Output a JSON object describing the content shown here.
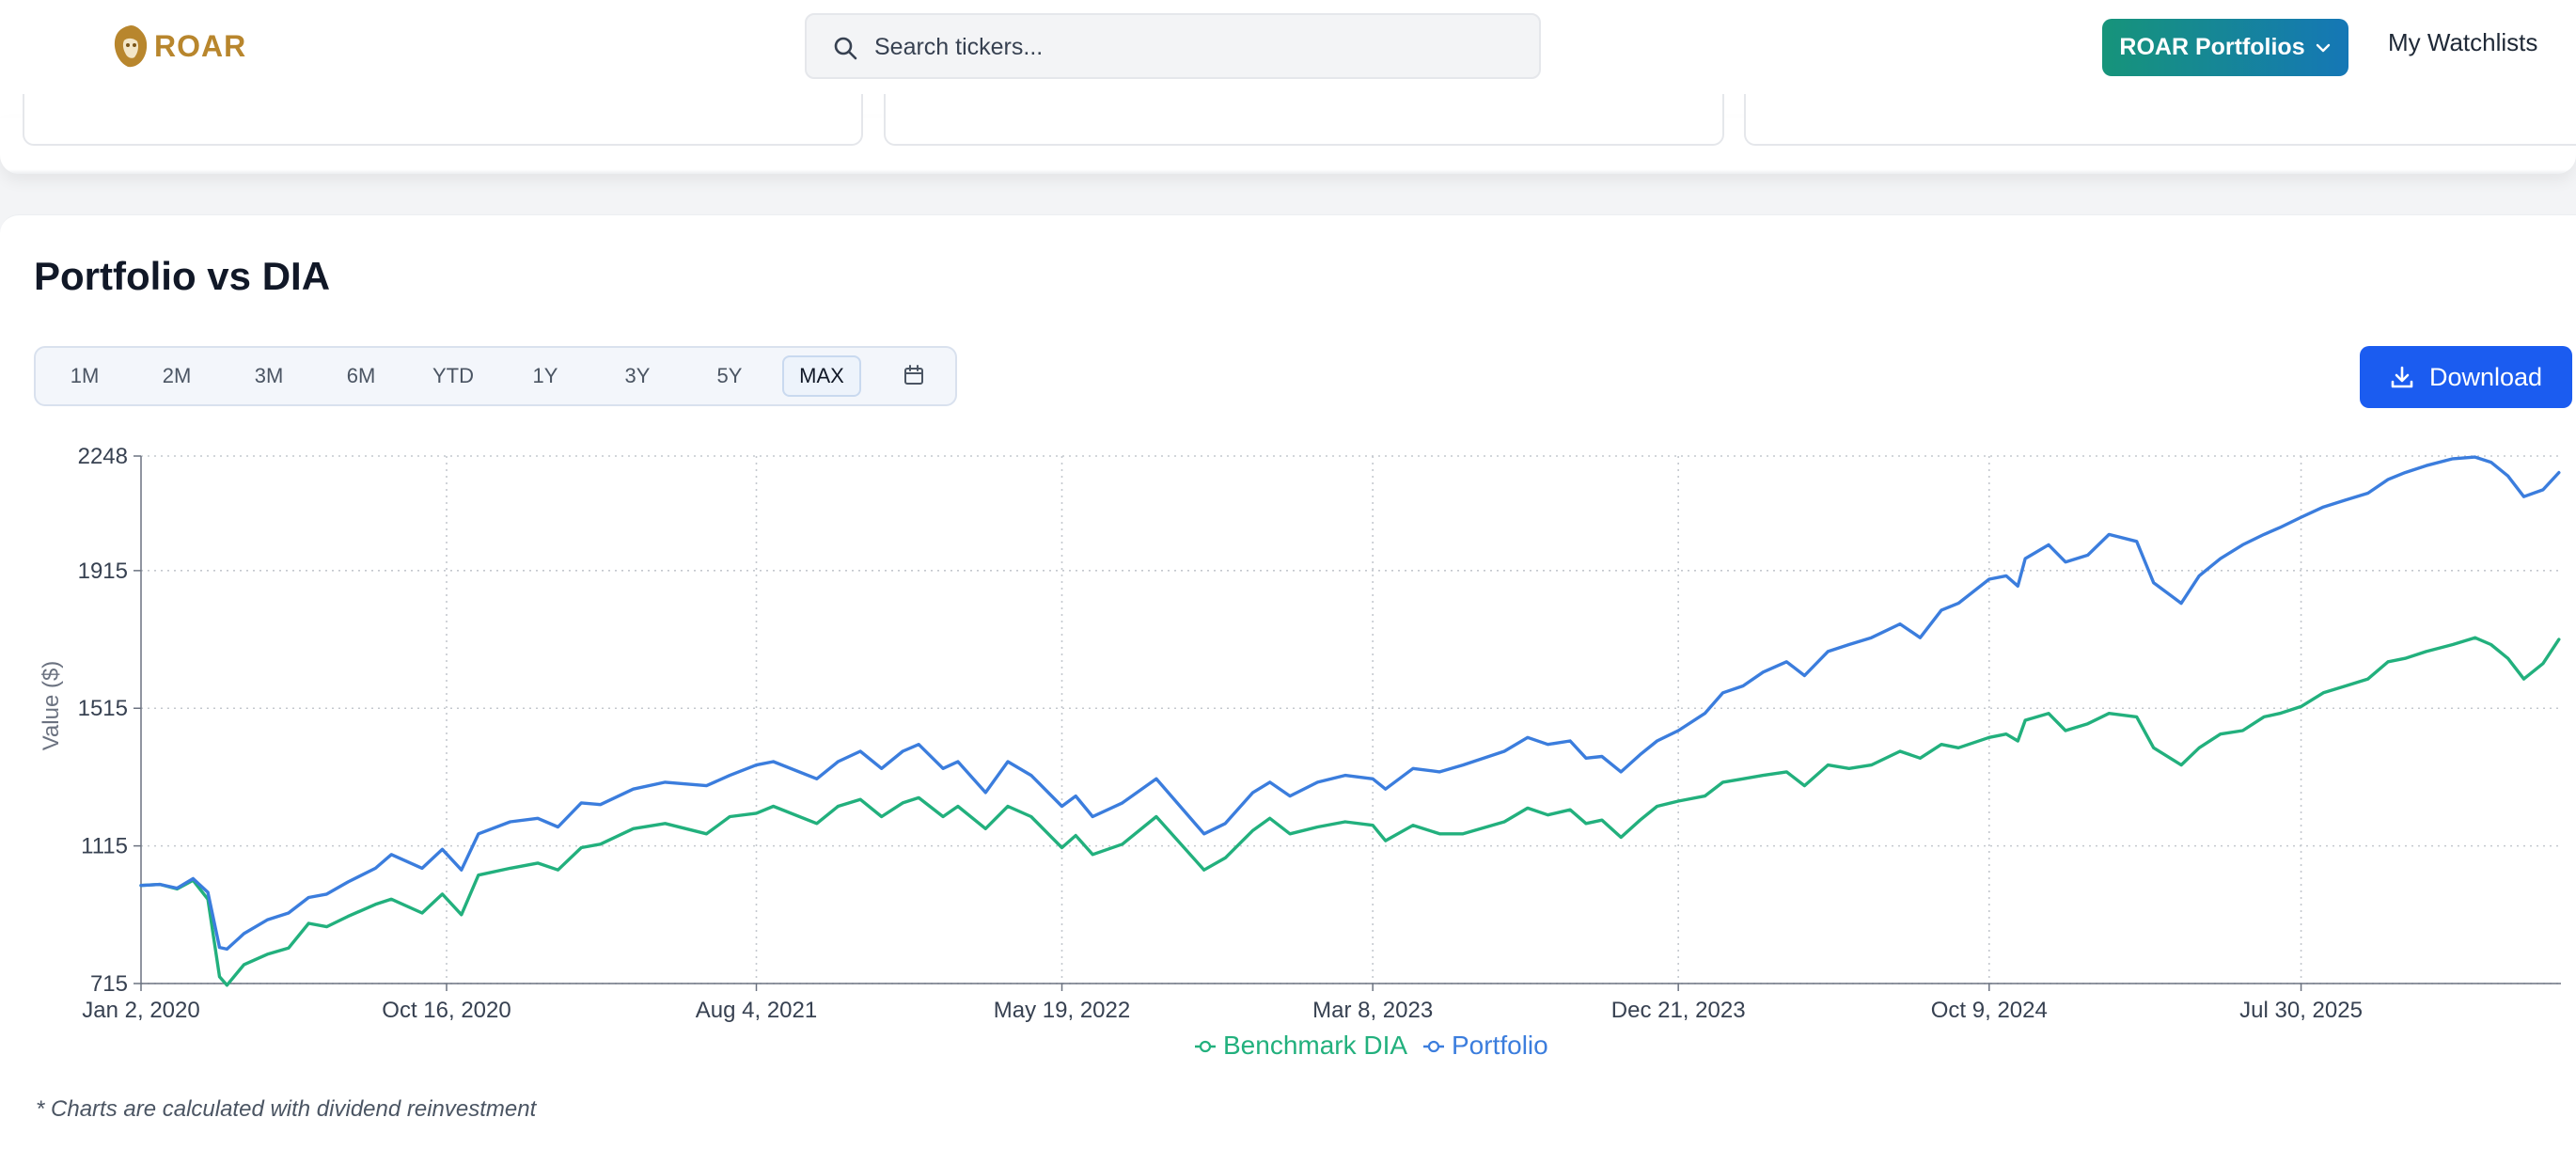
{
  "header": {
    "logo_text": "ROAR",
    "search_placeholder": "Search tickers...",
    "portfolios_button": "ROAR Portfolios",
    "watchlists_link": "My Watchlists"
  },
  "page": {
    "title": "Portfolio vs DIA",
    "ranges": [
      "1M",
      "2M",
      "3M",
      "6M",
      "YTD",
      "1Y",
      "3Y",
      "5Y",
      "MAX"
    ],
    "active_range": "MAX",
    "download_label": "Download",
    "footnote": "* Charts are calculated with dividend reinvestment"
  },
  "colors": {
    "accent_blue": "#1b5cf0",
    "portfolio_line": "#3b7ddd",
    "benchmark_line": "#22b07d",
    "brand_gold": "#b8862d"
  },
  "chart_data": {
    "type": "line",
    "title": "",
    "xlabel": "",
    "ylabel": "Value ($)",
    "ylim": [
      715,
      2248
    ],
    "yticks": [
      715,
      1115,
      1515,
      1915,
      2248
    ],
    "x_ticks": [
      "Jan 2, 2020",
      "Oct 16, 2020",
      "Aug 4, 2021",
      "May 19, 2022",
      "Mar 8, 2023",
      "Dec 21, 2023",
      "Oct 9, 2024",
      "Jul 30, 2025"
    ],
    "x_tick_dates": [
      "2020-01-02",
      "2020-10-16",
      "2021-08-04",
      "2022-05-19",
      "2023-03-08",
      "2023-12-21",
      "2024-10-09",
      "2025-07-30"
    ],
    "grid": true,
    "legend_position": "bottom-center",
    "series": [
      {
        "name": "Benchmark DIA",
        "color": "#22b07d",
        "points": [
          [
            "2020-01-02",
            1000
          ],
          [
            "2020-01-20",
            1003
          ],
          [
            "2020-02-05",
            990
          ],
          [
            "2020-02-20",
            1015
          ],
          [
            "2020-03-05",
            960
          ],
          [
            "2020-03-16",
            735
          ],
          [
            "2020-03-23",
            710
          ],
          [
            "2020-04-08",
            770
          ],
          [
            "2020-04-30",
            800
          ],
          [
            "2020-05-20",
            818
          ],
          [
            "2020-06-08",
            890
          ],
          [
            "2020-06-25",
            880
          ],
          [
            "2020-07-15",
            910
          ],
          [
            "2020-08-10",
            945
          ],
          [
            "2020-08-25",
            960
          ],
          [
            "2020-09-23",
            920
          ],
          [
            "2020-10-12",
            975
          ],
          [
            "2020-10-30",
            915
          ],
          [
            "2020-11-15",
            1030
          ],
          [
            "2020-12-15",
            1050
          ],
          [
            "2021-01-10",
            1065
          ],
          [
            "2021-01-29",
            1045
          ],
          [
            "2021-02-20",
            1110
          ],
          [
            "2021-03-10",
            1120
          ],
          [
            "2021-04-10",
            1165
          ],
          [
            "2021-05-10",
            1180
          ],
          [
            "2021-06-18",
            1150
          ],
          [
            "2021-07-10",
            1200
          ],
          [
            "2021-08-04",
            1210
          ],
          [
            "2021-08-20",
            1230
          ],
          [
            "2021-09-30",
            1180
          ],
          [
            "2021-10-20",
            1230
          ],
          [
            "2021-11-10",
            1250
          ],
          [
            "2021-11-30",
            1200
          ],
          [
            "2021-12-20",
            1240
          ],
          [
            "2022-01-04",
            1255
          ],
          [
            "2022-01-27",
            1200
          ],
          [
            "2022-02-10",
            1230
          ],
          [
            "2022-03-08",
            1165
          ],
          [
            "2022-03-29",
            1230
          ],
          [
            "2022-04-20",
            1200
          ],
          [
            "2022-05-19",
            1110
          ],
          [
            "2022-06-01",
            1145
          ],
          [
            "2022-06-17",
            1090
          ],
          [
            "2022-07-15",
            1120
          ],
          [
            "2022-08-16",
            1200
          ],
          [
            "2022-09-30",
            1045
          ],
          [
            "2022-10-20",
            1080
          ],
          [
            "2022-11-15",
            1160
          ],
          [
            "2022-12-01",
            1195
          ],
          [
            "2022-12-20",
            1150
          ],
          [
            "2023-01-15",
            1170
          ],
          [
            "2023-02-10",
            1185
          ],
          [
            "2023-03-08",
            1175
          ],
          [
            "2023-03-20",
            1130
          ],
          [
            "2023-04-15",
            1175
          ],
          [
            "2023-05-10",
            1150
          ],
          [
            "2023-06-01",
            1150
          ],
          [
            "2023-07-10",
            1185
          ],
          [
            "2023-08-01",
            1225
          ],
          [
            "2023-08-20",
            1205
          ],
          [
            "2023-09-10",
            1220
          ],
          [
            "2023-09-25",
            1180
          ],
          [
            "2023-10-10",
            1190
          ],
          [
            "2023-10-28",
            1140
          ],
          [
            "2023-11-15",
            1190
          ],
          [
            "2023-12-01",
            1230
          ],
          [
            "2023-12-21",
            1245
          ],
          [
            "2024-01-15",
            1260
          ],
          [
            "2024-02-01",
            1300
          ],
          [
            "2024-02-20",
            1310
          ],
          [
            "2024-03-10",
            1320
          ],
          [
            "2024-04-01",
            1330
          ],
          [
            "2024-04-18",
            1290
          ],
          [
            "2024-05-10",
            1350
          ],
          [
            "2024-05-30",
            1340
          ],
          [
            "2024-06-20",
            1350
          ],
          [
            "2024-07-17",
            1390
          ],
          [
            "2024-08-05",
            1370
          ],
          [
            "2024-08-25",
            1410
          ],
          [
            "2024-09-10",
            1400
          ],
          [
            "2024-10-09",
            1430
          ],
          [
            "2024-10-25",
            1440
          ],
          [
            "2024-11-05",
            1420
          ],
          [
            "2024-11-12",
            1480
          ],
          [
            "2024-12-04",
            1500
          ],
          [
            "2024-12-20",
            1450
          ],
          [
            "2025-01-10",
            1470
          ],
          [
            "2025-01-30",
            1500
          ],
          [
            "2025-02-25",
            1490
          ],
          [
            "2025-03-13",
            1400
          ],
          [
            "2025-04-08",
            1350
          ],
          [
            "2025-04-25",
            1400
          ],
          [
            "2025-05-15",
            1440
          ],
          [
            "2025-06-05",
            1450
          ],
          [
            "2025-06-25",
            1490
          ],
          [
            "2025-07-10",
            1500
          ],
          [
            "2025-07-30",
            1520
          ],
          [
            "2025-08-20",
            1560
          ],
          [
            "2025-09-10",
            1580
          ],
          [
            "2025-10-01",
            1600
          ],
          [
            "2025-10-20",
            1650
          ],
          [
            "2025-11-05",
            1660
          ],
          [
            "2025-11-25",
            1680
          ],
          [
            "2025-12-20",
            1700
          ],
          [
            "2026-01-10",
            1720
          ],
          [
            "2026-01-25",
            1700
          ],
          [
            "2026-02-10",
            1660
          ],
          [
            "2026-02-25",
            1600
          ],
          [
            "2026-03-15",
            1645
          ],
          [
            "2026-03-30",
            1715
          ]
        ]
      },
      {
        "name": "Portfolio",
        "color": "#3b7ddd",
        "points": [
          [
            "2020-01-02",
            1000
          ],
          [
            "2020-01-20",
            1003
          ],
          [
            "2020-02-05",
            992
          ],
          [
            "2020-02-20",
            1020
          ],
          [
            "2020-03-05",
            980
          ],
          [
            "2020-03-16",
            820
          ],
          [
            "2020-03-23",
            815
          ],
          [
            "2020-04-08",
            860
          ],
          [
            "2020-04-30",
            900
          ],
          [
            "2020-05-20",
            920
          ],
          [
            "2020-06-08",
            965
          ],
          [
            "2020-06-25",
            975
          ],
          [
            "2020-07-15",
            1010
          ],
          [
            "2020-08-10",
            1050
          ],
          [
            "2020-08-25",
            1090
          ],
          [
            "2020-09-23",
            1050
          ],
          [
            "2020-10-12",
            1105
          ],
          [
            "2020-10-30",
            1045
          ],
          [
            "2020-11-15",
            1150
          ],
          [
            "2020-12-15",
            1185
          ],
          [
            "2021-01-10",
            1195
          ],
          [
            "2021-01-29",
            1170
          ],
          [
            "2021-02-20",
            1240
          ],
          [
            "2021-03-10",
            1235
          ],
          [
            "2021-04-10",
            1280
          ],
          [
            "2021-05-10",
            1300
          ],
          [
            "2021-06-18",
            1290
          ],
          [
            "2021-07-10",
            1320
          ],
          [
            "2021-08-04",
            1350
          ],
          [
            "2021-08-20",
            1360
          ],
          [
            "2021-09-30",
            1310
          ],
          [
            "2021-10-20",
            1360
          ],
          [
            "2021-11-10",
            1390
          ],
          [
            "2021-11-30",
            1340
          ],
          [
            "2021-12-20",
            1390
          ],
          [
            "2022-01-04",
            1410
          ],
          [
            "2022-01-27",
            1340
          ],
          [
            "2022-02-10",
            1360
          ],
          [
            "2022-03-08",
            1270
          ],
          [
            "2022-03-29",
            1360
          ],
          [
            "2022-04-20",
            1320
          ],
          [
            "2022-05-19",
            1230
          ],
          [
            "2022-06-01",
            1260
          ],
          [
            "2022-06-17",
            1200
          ],
          [
            "2022-07-15",
            1240
          ],
          [
            "2022-08-16",
            1310
          ],
          [
            "2022-09-30",
            1150
          ],
          [
            "2022-10-20",
            1180
          ],
          [
            "2022-11-15",
            1270
          ],
          [
            "2022-12-01",
            1300
          ],
          [
            "2022-12-20",
            1260
          ],
          [
            "2023-01-15",
            1300
          ],
          [
            "2023-02-10",
            1320
          ],
          [
            "2023-03-08",
            1310
          ],
          [
            "2023-03-20",
            1280
          ],
          [
            "2023-04-15",
            1340
          ],
          [
            "2023-05-10",
            1330
          ],
          [
            "2023-06-01",
            1350
          ],
          [
            "2023-07-10",
            1390
          ],
          [
            "2023-08-01",
            1430
          ],
          [
            "2023-08-20",
            1410
          ],
          [
            "2023-09-10",
            1420
          ],
          [
            "2023-09-25",
            1370
          ],
          [
            "2023-10-10",
            1375
          ],
          [
            "2023-10-28",
            1330
          ],
          [
            "2023-11-15",
            1380
          ],
          [
            "2023-12-01",
            1420
          ],
          [
            "2023-12-21",
            1450
          ],
          [
            "2024-01-15",
            1500
          ],
          [
            "2024-02-01",
            1560
          ],
          [
            "2024-02-20",
            1580
          ],
          [
            "2024-03-10",
            1620
          ],
          [
            "2024-04-01",
            1650
          ],
          [
            "2024-04-18",
            1610
          ],
          [
            "2024-05-10",
            1680
          ],
          [
            "2024-05-30",
            1700
          ],
          [
            "2024-06-20",
            1720
          ],
          [
            "2024-07-17",
            1760
          ],
          [
            "2024-08-05",
            1720
          ],
          [
            "2024-08-25",
            1800
          ],
          [
            "2024-09-10",
            1820
          ],
          [
            "2024-10-09",
            1890
          ],
          [
            "2024-10-25",
            1900
          ],
          [
            "2024-11-05",
            1870
          ],
          [
            "2024-11-12",
            1950
          ],
          [
            "2024-12-04",
            1990
          ],
          [
            "2024-12-20",
            1940
          ],
          [
            "2025-01-10",
            1960
          ],
          [
            "2025-01-30",
            2020
          ],
          [
            "2025-02-25",
            2000
          ],
          [
            "2025-03-13",
            1880
          ],
          [
            "2025-04-08",
            1820
          ],
          [
            "2025-04-25",
            1900
          ],
          [
            "2025-05-15",
            1950
          ],
          [
            "2025-06-05",
            1990
          ],
          [
            "2025-06-25",
            2020
          ],
          [
            "2025-07-10",
            2040
          ],
          [
            "2025-07-30",
            2070
          ],
          [
            "2025-08-20",
            2100
          ],
          [
            "2025-09-10",
            2120
          ],
          [
            "2025-10-01",
            2140
          ],
          [
            "2025-10-20",
            2180
          ],
          [
            "2025-11-05",
            2200
          ],
          [
            "2025-11-25",
            2220
          ],
          [
            "2025-12-20",
            2240
          ],
          [
            "2026-01-10",
            2245
          ],
          [
            "2026-01-25",
            2230
          ],
          [
            "2026-02-10",
            2190
          ],
          [
            "2026-02-25",
            2130
          ],
          [
            "2026-03-15",
            2150
          ],
          [
            "2026-03-30",
            2200
          ]
        ]
      }
    ]
  }
}
